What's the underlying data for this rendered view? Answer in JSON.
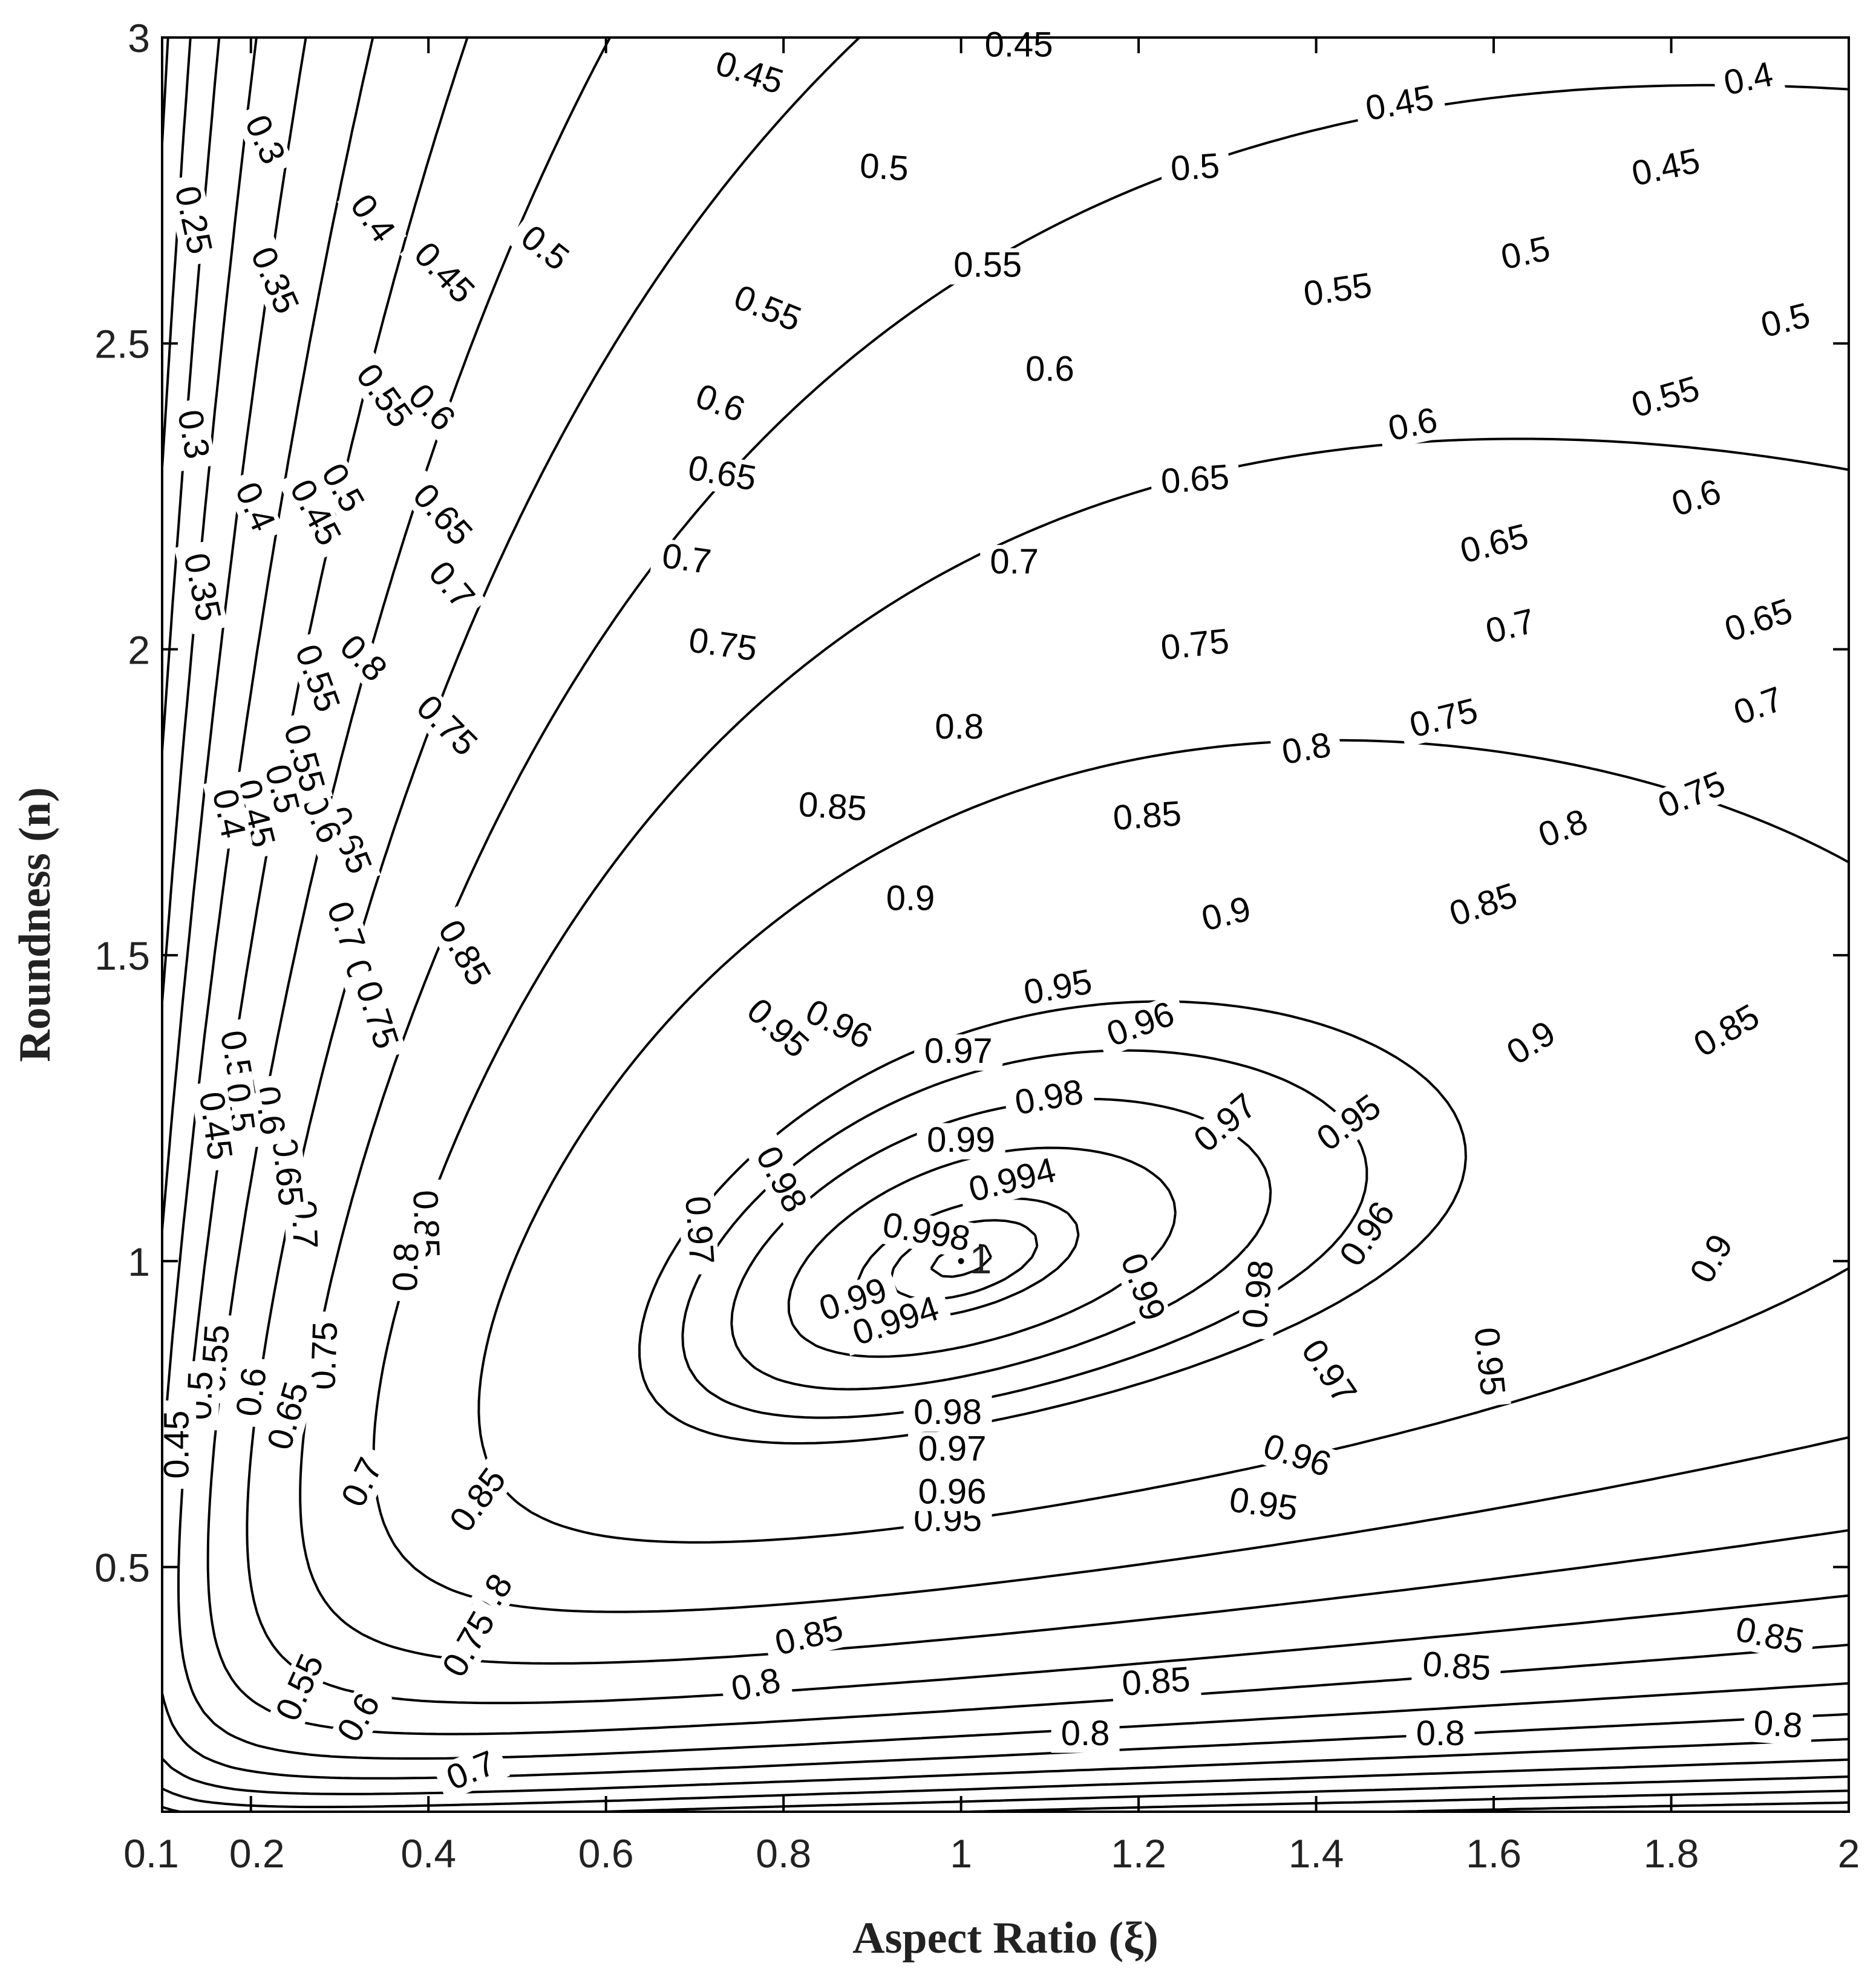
{
  "chart_data": {
    "type": "contour",
    "xlabel": "Aspect Ratio (ξ)",
    "ylabel": "Roundness (n)",
    "xlim": [
      0.1,
      2
    ],
    "ylim": [
      0.1,
      3
    ],
    "xticks": [
      0.1,
      0.2,
      0.4,
      0.6,
      0.8,
      1,
      1.2,
      1.4,
      1.6,
      1.8,
      2
    ],
    "xtick_labels": [
      "0.1",
      "0.2",
      "0.4",
      "0.6",
      "0.8",
      "1",
      "1.2",
      "1.4",
      "1.6",
      "1.8",
      "2"
    ],
    "yticks": [
      0.5,
      1,
      1.5,
      2,
      2.5,
      3
    ],
    "ytick_labels": [
      "0.5",
      "1",
      "1.5",
      "2",
      "2.5",
      "3"
    ],
    "grid": false,
    "legend": "none",
    "peak": {
      "x": 1.0,
      "y": 1.0,
      "value": 1,
      "label": "1"
    },
    "contour_levels": [
      "0.25",
      "0.3",
      "0.35",
      "0.4",
      "0.45",
      "0.5",
      "0.55",
      "0.6",
      "0.65",
      "0.7",
      "0.75",
      "0.8",
      "0.85",
      "0.9",
      "0.95",
      "0.96",
      "0.97",
      "0.98",
      "0.99",
      "0.994",
      "0.998"
    ],
    "labels": [
      {
        "text": "0.45",
        "x": 1.065,
        "y": 2.98,
        "angle": 0
      },
      {
        "text": "0.4",
        "x": 1.888,
        "y": 2.925,
        "angle": 12
      },
      {
        "text": "0.45",
        "x": 0.76,
        "y": 2.935,
        "angle": -18
      },
      {
        "text": "0.45",
        "x": 1.495,
        "y": 2.885,
        "angle": 10
      },
      {
        "text": "0.45",
        "x": 1.795,
        "y": 2.78,
        "angle": 12
      },
      {
        "text": "0.5",
        "x": 0.913,
        "y": 2.78,
        "angle": -4
      },
      {
        "text": "0.5",
        "x": 1.264,
        "y": 2.78,
        "angle": 4
      },
      {
        "text": "0.5",
        "x": 1.637,
        "y": 2.64,
        "angle": 12
      },
      {
        "text": "0.5",
        "x": 1.93,
        "y": 2.53,
        "angle": 14
      },
      {
        "text": "0.55",
        "x": 1.03,
        "y": 2.62,
        "angle": 0
      },
      {
        "text": "0.55",
        "x": 1.425,
        "y": 2.58,
        "angle": 8
      },
      {
        "text": "0.55",
        "x": 0.78,
        "y": 2.55,
        "angle": -22
      },
      {
        "text": "0.55",
        "x": 1.795,
        "y": 2.405,
        "angle": 16
      },
      {
        "text": "0.6",
        "x": 1.1,
        "y": 2.45,
        "angle": 0
      },
      {
        "text": "0.6",
        "x": 0.727,
        "y": 2.395,
        "angle": -20
      },
      {
        "text": "0.6",
        "x": 1.51,
        "y": 2.36,
        "angle": 12
      },
      {
        "text": "0.6",
        "x": 1.83,
        "y": 2.24,
        "angle": 18
      },
      {
        "text": "0.65",
        "x": 0.73,
        "y": 2.28,
        "angle": -10
      },
      {
        "text": "0.65",
        "x": 1.264,
        "y": 2.27,
        "angle": 4
      },
      {
        "text": "0.65",
        "x": 1.602,
        "y": 2.165,
        "angle": 14
      },
      {
        "text": "0.65",
        "x": 1.9,
        "y": 2.04,
        "angle": 18
      },
      {
        "text": "0.7",
        "x": 0.69,
        "y": 2.14,
        "angle": -8
      },
      {
        "text": "0.7",
        "x": 1.06,
        "y": 2.135,
        "angle": 0
      },
      {
        "text": "0.7",
        "x": 1.62,
        "y": 2.03,
        "angle": 14
      },
      {
        "text": "0.7",
        "x": 1.9,
        "y": 1.9,
        "angle": 20
      },
      {
        "text": "0.75",
        "x": 0.731,
        "y": 2.0,
        "angle": -8
      },
      {
        "text": "0.75",
        "x": 1.264,
        "y": 2.0,
        "angle": 6
      },
      {
        "text": "0.75",
        "x": 1.545,
        "y": 1.88,
        "angle": 14
      },
      {
        "text": "0.75",
        "x": 1.825,
        "y": 1.755,
        "angle": 22
      },
      {
        "text": "0.8",
        "x": 0.998,
        "y": 1.865,
        "angle": 0
      },
      {
        "text": "0.8",
        "x": 1.39,
        "y": 1.83,
        "angle": 10
      },
      {
        "text": "0.8",
        "x": 1.68,
        "y": 1.7,
        "angle": 20
      },
      {
        "text": "0.85",
        "x": 0.855,
        "y": 1.735,
        "angle": -4
      },
      {
        "text": "0.85",
        "x": 1.21,
        "y": 1.72,
        "angle": 4
      },
      {
        "text": "0.85",
        "x": 1.59,
        "y": 1.575,
        "angle": 18
      },
      {
        "text": "0.85",
        "x": 1.865,
        "y": 1.37,
        "angle": 30
      },
      {
        "text": "0.9",
        "x": 0.943,
        "y": 1.585,
        "angle": 0
      },
      {
        "text": "0.9",
        "x": 1.3,
        "y": 1.56,
        "angle": 14
      },
      {
        "text": "0.9",
        "x": 1.645,
        "y": 1.35,
        "angle": 32
      },
      {
        "text": "0.9",
        "x": 1.85,
        "y": 1.0,
        "angle": 60
      },
      {
        "text": "0.95",
        "x": 1.11,
        "y": 1.44,
        "angle": 10
      },
      {
        "text": "0.95",
        "x": 1.44,
        "y": 1.22,
        "angle": 36
      },
      {
        "text": "0.95",
        "x": 1.59,
        "y": 0.835,
        "angle": -84
      },
      {
        "text": "0.95",
        "x": 1.34,
        "y": 0.595,
        "angle": -8
      },
      {
        "text": "0.95",
        "x": 0.985,
        "y": 0.57,
        "angle": 0
      },
      {
        "text": "0.95",
        "x": 0.79,
        "y": 1.375,
        "angle": -42
      },
      {
        "text": "0.96",
        "x": 0.86,
        "y": 1.38,
        "angle": -26
      },
      {
        "text": "0.96",
        "x": 1.204,
        "y": 1.38,
        "angle": 20
      },
      {
        "text": "0.96",
        "x": 1.462,
        "y": 1.04,
        "angle": 56
      },
      {
        "text": "0.96",
        "x": 1.377,
        "y": 0.675,
        "angle": -18
      },
      {
        "text": "0.96",
        "x": 0.99,
        "y": 0.615,
        "angle": 0
      },
      {
        "text": "0.97",
        "x": 0.997,
        "y": 1.335,
        "angle": 0
      },
      {
        "text": "0.97",
        "x": 1.301,
        "y": 1.22,
        "angle": 40
      },
      {
        "text": "0.97",
        "x": 1.41,
        "y": 0.815,
        "angle": -56
      },
      {
        "text": "0.97",
        "x": 0.99,
        "y": 0.685,
        "angle": 0
      },
      {
        "text": "0.97",
        "x": 0.7,
        "y": 1.05,
        "angle": -86
      },
      {
        "text": "0.98",
        "x": 1.1,
        "y": 1.26,
        "angle": 10
      },
      {
        "text": "0.98",
        "x": 0.793,
        "y": 1.13,
        "angle": -62
      },
      {
        "text": "0.98",
        "x": 1.34,
        "y": 0.945,
        "angle": 84
      },
      {
        "text": "0.98",
        "x": 0.985,
        "y": 0.745,
        "angle": 0
      },
      {
        "text": "0.99",
        "x": 1.0,
        "y": 1.19,
        "angle": 0
      },
      {
        "text": "0.99",
        "x": 1.2,
        "y": 0.955,
        "angle": -70
      },
      {
        "text": "0.99",
        "x": 0.88,
        "y": 0.93,
        "angle": 18
      },
      {
        "text": "0.994",
        "x": 1.059,
        "y": 1.125,
        "angle": 14
      },
      {
        "text": "0.994",
        "x": 0.928,
        "y": 0.895,
        "angle": 18
      },
      {
        "text": "0.998",
        "x": 0.96,
        "y": 1.04,
        "angle": -10
      },
      {
        "text": "0.85",
        "x": 0.436,
        "y": 1.5,
        "angle": -60
      },
      {
        "text": "0.85",
        "x": 0.392,
        "y": 1.06,
        "angle": -88
      },
      {
        "text": "0.85",
        "x": 0.46,
        "y": 0.605,
        "angle": 54
      },
      {
        "text": "0.85",
        "x": 0.83,
        "y": 0.38,
        "angle": 14
      },
      {
        "text": "0.85",
        "x": 1.22,
        "y": 0.305,
        "angle": 4
      },
      {
        "text": "0.85",
        "x": 1.558,
        "y": 0.33,
        "angle": -4
      },
      {
        "text": "0.85",
        "x": 1.91,
        "y": 0.38,
        "angle": -12
      },
      {
        "text": "0.8",
        "x": 0.323,
        "y": 1.98,
        "angle": -45
      },
      {
        "text": "0.8",
        "x": 0.322,
        "y": 1.45,
        "angle": -70
      },
      {
        "text": "0.8",
        "x": 0.38,
        "y": 0.99,
        "angle": 88
      },
      {
        "text": "0.8",
        "x": 0.475,
        "y": 0.445,
        "angle": 58
      },
      {
        "text": "0.8",
        "x": 0.77,
        "y": 0.3,
        "angle": 12
      },
      {
        "text": "0.8",
        "x": 1.14,
        "y": 0.22,
        "angle": 0
      },
      {
        "text": "0.8",
        "x": 1.54,
        "y": 0.22,
        "angle": 0
      },
      {
        "text": "0.8",
        "x": 1.92,
        "y": 0.235,
        "angle": -4
      },
      {
        "text": "0.75",
        "x": 0.417,
        "y": 1.87,
        "angle": -45
      },
      {
        "text": "0.75",
        "x": 0.337,
        "y": 1.4,
        "angle": -72
      },
      {
        "text": "0.75",
        "x": 0.288,
        "y": 0.845,
        "angle": 88
      },
      {
        "text": "0.75",
        "x": 0.45,
        "y": 0.37,
        "angle": 60
      },
      {
        "text": "0.7",
        "x": 0.422,
        "y": 2.1,
        "angle": -50
      },
      {
        "text": "0.7",
        "x": 0.302,
        "y": 1.545,
        "angle": -70
      },
      {
        "text": "0.7",
        "x": 0.255,
        "y": 1.06,
        "angle": -88
      },
      {
        "text": "0.7",
        "x": 0.33,
        "y": 0.635,
        "angle": 64
      },
      {
        "text": "0.7",
        "x": 0.45,
        "y": 0.16,
        "angle": 22
      },
      {
        "text": "0.65",
        "x": 0.412,
        "y": 2.215,
        "angle": -48
      },
      {
        "text": "0.65",
        "x": 0.305,
        "y": 1.685,
        "angle": -68
      },
      {
        "text": "0.65",
        "x": 0.236,
        "y": 1.145,
        "angle": -84
      },
      {
        "text": "0.65",
        "x": 0.247,
        "y": 0.745,
        "angle": 74
      },
      {
        "text": "0.6",
        "x": 0.4,
        "y": 2.39,
        "angle": -46
      },
      {
        "text": "0.6",
        "x": 0.275,
        "y": 1.72,
        "angle": -66
      },
      {
        "text": "0.6",
        "x": 0.216,
        "y": 1.245,
        "angle": -82
      },
      {
        "text": "0.6",
        "x": 0.206,
        "y": 0.785,
        "angle": 82
      },
      {
        "text": "0.6",
        "x": 0.326,
        "y": 0.25,
        "angle": 60
      },
      {
        "text": "0.55",
        "x": 0.346,
        "y": 2.41,
        "angle": -54
      },
      {
        "text": "0.55",
        "x": 0.27,
        "y": 1.95,
        "angle": -70
      },
      {
        "text": "0.55",
        "x": 0.255,
        "y": 1.82,
        "angle": -74
      },
      {
        "text": "0.55",
        "x": 0.18,
        "y": 1.32,
        "angle": -80
      },
      {
        "text": "0.55",
        "x": 0.165,
        "y": 0.84,
        "angle": 86
      },
      {
        "text": "0.55",
        "x": 0.26,
        "y": 0.3,
        "angle": 66
      },
      {
        "text": "0.5",
        "x": 0.528,
        "y": 2.65,
        "angle": -38
      },
      {
        "text": "0.5",
        "x": 0.299,
        "y": 2.26,
        "angle": -60
      },
      {
        "text": "0.5",
        "x": 0.23,
        "y": 1.77,
        "angle": -76
      },
      {
        "text": "0.5",
        "x": 0.182,
        "y": 1.25,
        "angle": -82
      },
      {
        "text": "0.5",
        "x": 0.148,
        "y": 0.78,
        "angle": 88
      },
      {
        "text": "0.45",
        "x": 0.414,
        "y": 2.61,
        "angle": -46
      },
      {
        "text": "0.45",
        "x": 0.268,
        "y": 2.22,
        "angle": -62
      },
      {
        "text": "0.45",
        "x": 0.2,
        "y": 1.73,
        "angle": -76
      },
      {
        "text": "0.45",
        "x": 0.155,
        "y": 1.22,
        "angle": -82
      },
      {
        "text": "0.45",
        "x": 0.122,
        "y": 0.7,
        "angle": 90
      },
      {
        "text": "0.4",
        "x": 0.333,
        "y": 2.7,
        "angle": -54
      },
      {
        "text": "0.4",
        "x": 0.2,
        "y": 2.23,
        "angle": -66
      },
      {
        "text": "0.4",
        "x": 0.17,
        "y": 1.73,
        "angle": -78
      },
      {
        "text": "0.35",
        "x": 0.222,
        "y": 2.6,
        "angle": -66
      },
      {
        "text": "0.35",
        "x": 0.14,
        "y": 2.1,
        "angle": -78
      },
      {
        "text": "0.3",
        "x": 0.211,
        "y": 2.83,
        "angle": -66
      },
      {
        "text": "0.3",
        "x": 0.13,
        "y": 2.35,
        "angle": -80
      },
      {
        "text": "0.25",
        "x": 0.13,
        "y": 2.7,
        "angle": -78
      }
    ]
  }
}
